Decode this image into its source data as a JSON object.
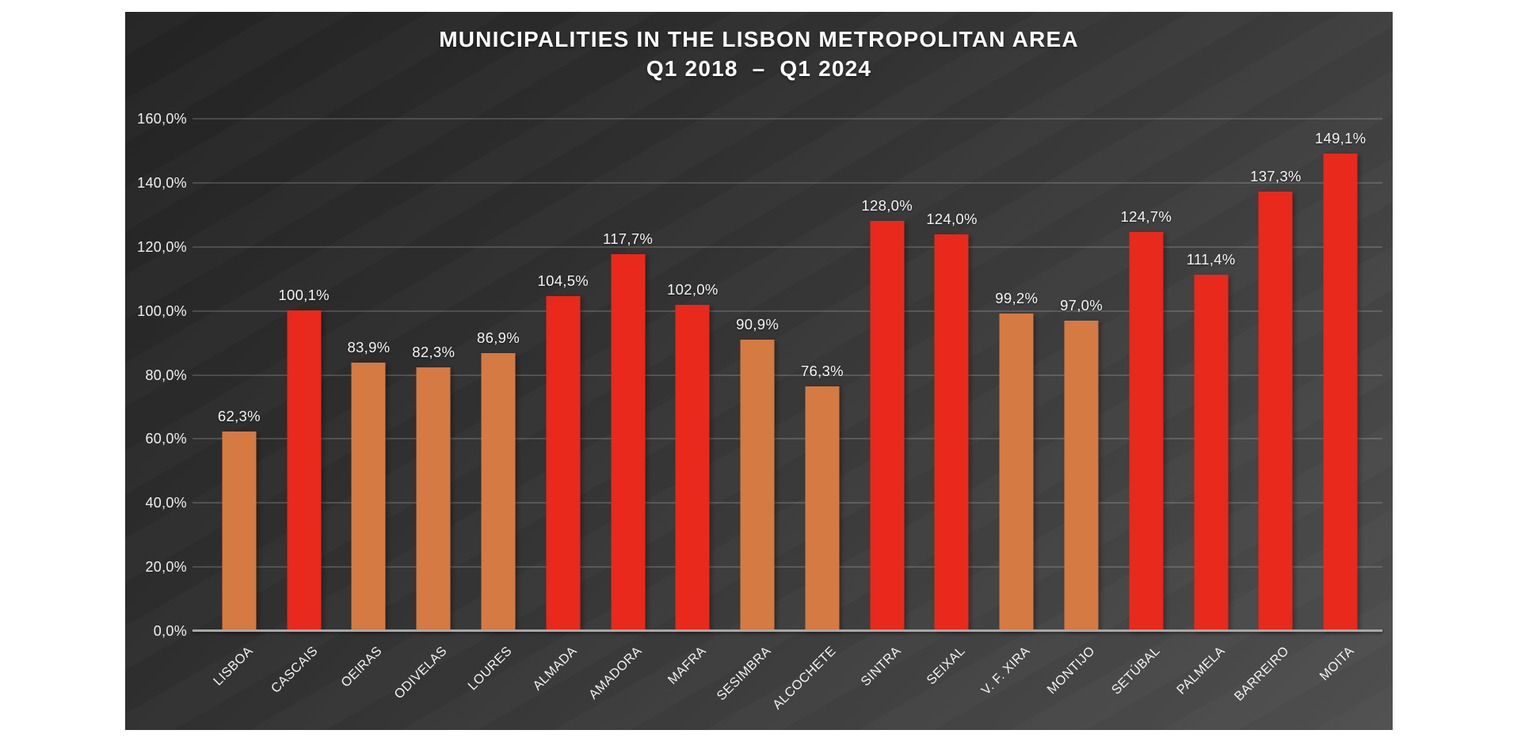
{
  "title": {
    "line1": "MUNICIPALITIES IN THE LISBON METROPOLITAN AREA",
    "line2": "Q1 2018  –  Q1 2024"
  },
  "chart_data": {
    "type": "bar",
    "title": "MUNICIPALITIES IN THE LISBON METROPOLITAN AREA",
    "subtitle": "Q1 2018  –  Q1 2024",
    "categories": [
      "LISBOA",
      "CASCAIS",
      "OEIRAS",
      "ODIVELAS",
      "LOURES",
      "ALMADA",
      "AMADORA",
      "MAFRA",
      "SESIMBRA",
      "ALCOCHETE",
      "SINTRA",
      "SEIXAL",
      "V. F. XIRA",
      "MONTIJO",
      "SETÚBAL",
      "PALMELA",
      "BARREIRO",
      "MOITA"
    ],
    "values": [
      62.3,
      100.1,
      83.9,
      82.3,
      86.9,
      104.5,
      117.7,
      102.0,
      90.9,
      76.3,
      128.0,
      124.0,
      99.2,
      97.0,
      124.7,
      111.4,
      137.3,
      149.1
    ],
    "value_labels": [
      "62,3%",
      "100,1%",
      "83,9%",
      "82,3%",
      "86,9%",
      "104,5%",
      "117,7%",
      "102,0%",
      "90,9%",
      "76,3%",
      "128,0%",
      "124,0%",
      "99,2%",
      "97,0%",
      "124,7%",
      "111,4%",
      "137,3%",
      "149,1%"
    ],
    "bar_color_names": [
      "orange",
      "red",
      "orange",
      "orange",
      "orange",
      "red",
      "red",
      "red",
      "orange",
      "orange",
      "red",
      "red",
      "orange",
      "orange",
      "red",
      "red",
      "red",
      "red"
    ],
    "colors": {
      "orange": "#D57A42",
      "red": "#E8291C"
    },
    "ylim": [
      0,
      160
    ],
    "ytick_step": 20,
    "ytick_labels": [
      "0,0%",
      "20,0%",
      "40,0%",
      "60,0%",
      "80,0%",
      "100,0%",
      "120,0%",
      "140,0%",
      "160,0%"
    ],
    "grid": true,
    "legend": "none",
    "xlabel": "",
    "ylabel": ""
  }
}
